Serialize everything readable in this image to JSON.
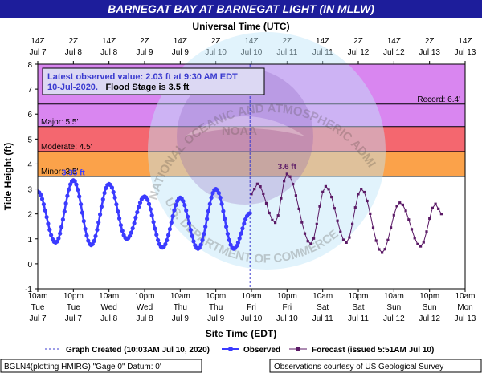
{
  "header": {
    "title": "BARNEGAT BAY AT BARNEGAT LIGHT (IN MLLW)"
  },
  "top_axis": {
    "title": "Universal Time (UTC)",
    "ticks": [
      {
        "hour": "14Z",
        "date": "Jul 7"
      },
      {
        "hour": "2Z",
        "date": "Jul 8"
      },
      {
        "hour": "14Z",
        "date": "Jul 8"
      },
      {
        "hour": "2Z",
        "date": "Jul 9"
      },
      {
        "hour": "14Z",
        "date": "Jul 9"
      },
      {
        "hour": "2Z",
        "date": "Jul 10"
      },
      {
        "hour": "14Z",
        "date": "Jul 10"
      },
      {
        "hour": "2Z",
        "date": "Jul 11"
      },
      {
        "hour": "14Z",
        "date": "Jul 11"
      },
      {
        "hour": "2Z",
        "date": "Jul 12"
      },
      {
        "hour": "14Z",
        "date": "Jul 12"
      },
      {
        "hour": "2Z",
        "date": "Jul 13"
      },
      {
        "hour": "14Z",
        "date": "Jul 13"
      }
    ]
  },
  "bottom_axis": {
    "title": "Site Time (EDT)",
    "ticks": [
      {
        "time": "10am",
        "day": "Tue",
        "date": "Jul 7"
      },
      {
        "time": "10pm",
        "day": "Tue",
        "date": "Jul 7"
      },
      {
        "time": "10am",
        "day": "Wed",
        "date": "Jul 8"
      },
      {
        "time": "10pm",
        "day": "Wed",
        "date": "Jul 8"
      },
      {
        "time": "10am",
        "day": "Thu",
        "date": "Jul 9"
      },
      {
        "time": "10pm",
        "day": "Thu",
        "date": "Jul 9"
      },
      {
        "time": "10am",
        "day": "Fri",
        "date": "Jul 10"
      },
      {
        "time": "10pm",
        "day": "Fri",
        "date": "Jul 10"
      },
      {
        "time": "10am",
        "day": "Sat",
        "date": "Jul 11"
      },
      {
        "time": "10pm",
        "day": "Sat",
        "date": "Jul 11"
      },
      {
        "time": "10am",
        "day": "Sun",
        "date": "Jul 12"
      },
      {
        "time": "10pm",
        "day": "Sun",
        "date": "Jul 12"
      },
      {
        "time": "10am",
        "day": "Mon",
        "date": "Jul 13"
      }
    ]
  },
  "info_box": {
    "line1": "Latest observed value: 2.03 ft at 9:30 AM EDT",
    "line2_date": "10-Jul-2020.",
    "line2_flood": "Flood Stage is 3.5 ft"
  },
  "bands": {
    "record": "Record: 6.4'",
    "major": "Major:  5.5'",
    "moderate": "Moderate:  4.5'",
    "minor": "Minor:  3.5'"
  },
  "peak_labels": {
    "observed": "3.35 ft",
    "forecast": "3.6 ft"
  },
  "legend": {
    "created": "Graph Created (10:03AM Jul 10, 2020)",
    "observed": "Observed",
    "forecast": "Forecast (issued 5:51AM Jul 10)"
  },
  "footer": {
    "left": "BGLN4(plotting HMIRG) \"Gage 0\" Datum: 0'",
    "right": "Observations courtesy of US Geological Survey"
  },
  "watermark": {
    "center": "NOAA",
    "arc_top": "NATIONAL OCEANIC AND ATMOSPHERIC ADMINISTRATION",
    "arc_bottom": "U.S. DEPARTMENT OF COMMERCE"
  },
  "colors": {
    "header_bg": "#1d1d9b",
    "record_band": "#e586f5",
    "major_band": "#d986f0",
    "moderate_band": "#f4676f",
    "minor_band": "#fba24a",
    "observed": "#3b3bff",
    "forecast": "#5b1a66",
    "info_bg": "#dcd8f3"
  },
  "chart_data": {
    "type": "line",
    "title": "BARNEGAT BAY AT BARNEGAT LIGHT (IN MLLW)",
    "xlabel": "Site Time (EDT)",
    "x2label": "Universal Time (UTC)",
    "ylabel": "Tide Height (ft)",
    "ylim": [
      -1,
      8
    ],
    "yticks": [
      -1,
      0,
      1,
      2,
      3,
      4,
      5,
      6,
      7,
      8
    ],
    "xlim": [
      "Jul 7 10am",
      "Jul 13 10am"
    ],
    "grid": false,
    "thresholds": [
      {
        "name": "Minor",
        "value": 3.5
      },
      {
        "name": "Moderate",
        "value": 4.5
      },
      {
        "name": "Major",
        "value": 5.5
      },
      {
        "name": "Record",
        "value": 6.4
      }
    ],
    "series": [
      {
        "name": "Observed",
        "x": [
          "Jul 7 10am",
          "Jul 7 4pm",
          "Jul 7 10pm",
          "Jul 8 4am",
          "Jul 8 10am",
          "Jul 8 4pm",
          "Jul 8 10pm",
          "Jul 9 4am",
          "Jul 9 10am",
          "Jul 9 4pm",
          "Jul 9 10pm",
          "Jul 10 4am",
          "Jul 10 9:30am"
        ],
        "values": [
          2.9,
          0.85,
          3.35,
          0.75,
          3.2,
          1.0,
          2.7,
          0.65,
          2.65,
          0.6,
          3.0,
          0.6,
          2.03
        ]
      },
      {
        "name": "Forecast",
        "x": [
          "Jul 10 10am",
          "Jul 10 12pm",
          "Jul 10 6pm",
          "Jul 10 10pm",
          "Jul 11 6am",
          "Jul 11 11am",
          "Jul 11 6pm",
          "Jul 11 11pm",
          "Jul 12 6am",
          "Jul 12 12pm",
          "Jul 12 7pm",
          "Jul 13 12am",
          "Jul 13 2am"
        ],
        "values": [
          2.8,
          3.2,
          1.65,
          3.6,
          0.8,
          3.1,
          0.85,
          3.0,
          0.45,
          2.45,
          0.7,
          2.4,
          2.0
        ]
      }
    ]
  }
}
